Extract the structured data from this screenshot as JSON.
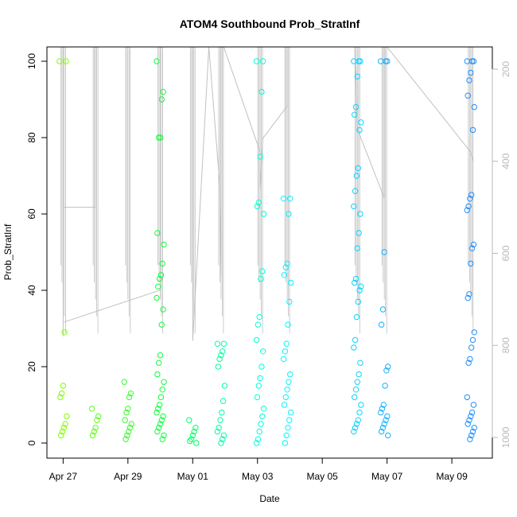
{
  "chart_data": {
    "type": "scatter",
    "title": "ATOM4 Southbound Prob_StratInf",
    "xlabel": "Date",
    "ylabel": "Prob_StratInf",
    "xlim": [
      "2016-04-26T12:00",
      "2016-05-10T06:00"
    ],
    "ylim": [
      0,
      100
    ],
    "x_ticks": [
      {
        "date": "2016-04-27",
        "label": "Apr 27"
      },
      {
        "date": "2016-04-29",
        "label": "Apr 29"
      },
      {
        "date": "2016-05-01",
        "label": "May 01"
      },
      {
        "date": "2016-05-03",
        "label": "May 03"
      },
      {
        "date": "2016-05-05",
        "label": "May 05"
      },
      {
        "date": "2016-05-07",
        "label": "May 07"
      },
      {
        "date": "2016-05-09",
        "label": "May 09"
      }
    ],
    "y_ticks": [
      0,
      20,
      40,
      60,
      80,
      100
    ],
    "y2_ticks": [
      200,
      400,
      600,
      800,
      1000
    ],
    "y2lim": [
      1020,
      150
    ],
    "grid": false,
    "legend": "none",
    "marker": "open-circle",
    "colors": {
      "points_start": "#7fff00",
      "points_mid": "#00ff40",
      "points_late": "#00ffff",
      "points_end": "#1e90ff",
      "secondary_line": "#c0c0c0",
      "secondary_axis": "#b8b8b8"
    },
    "series": [
      {
        "x": "2016-04-27T00:00",
        "y": [
          100,
          100,
          29,
          15,
          13,
          12,
          7,
          5,
          4,
          3,
          2
        ]
      },
      {
        "x": "2016-04-28T00:00",
        "y": [
          9,
          7,
          6,
          4,
          3,
          2
        ]
      },
      {
        "x": "2016-04-29T00:00",
        "y": [
          16,
          13,
          12,
          9,
          8,
          6,
          5,
          4,
          3,
          2,
          1
        ]
      },
      {
        "x": "2016-04-30T00:00",
        "y": [
          100,
          92,
          90,
          80,
          80,
          55,
          52,
          47,
          44,
          43,
          41,
          38,
          35,
          31,
          23,
          21,
          18,
          16,
          14,
          12,
          10,
          9,
          8,
          7,
          6,
          5,
          4,
          3,
          2,
          1
        ]
      },
      {
        "x": "2016-05-01T00:00",
        "y": [
          6,
          4,
          3,
          2,
          1,
          0.5,
          0
        ]
      },
      {
        "x": "2016-05-01T21:00",
        "y": [
          26,
          26,
          24,
          23,
          22,
          20,
          15,
          11,
          8,
          6,
          4,
          3,
          2,
          1,
          0
        ]
      },
      {
        "x": "2016-05-03T02:00",
        "y": [
          100,
          100,
          92,
          75,
          63,
          62,
          60,
          45,
          43,
          33,
          31,
          27,
          24,
          20,
          17,
          15,
          12,
          9,
          7,
          5,
          3,
          1,
          0
        ]
      },
      {
        "x": "2016-05-03T22:00",
        "y": [
          64,
          64,
          60,
          47,
          46,
          44,
          42,
          37,
          31,
          26,
          24,
          22,
          18,
          16,
          14,
          12,
          10,
          8,
          6,
          4,
          2,
          0
        ]
      },
      {
        "x": "2016-05-06T02:00",
        "y": [
          100,
          100,
          100,
          96,
          88,
          86,
          84,
          82,
          72,
          70,
          66,
          62,
          60,
          55,
          51,
          43,
          42,
          41,
          40,
          37,
          33,
          27,
          25,
          21,
          18,
          16,
          14,
          12,
          10,
          8,
          6,
          5,
          4,
          3
        ]
      },
      {
        "x": "2016-05-06T22:00",
        "y": [
          100,
          100,
          100,
          50,
          35,
          31,
          20,
          19,
          15,
          10,
          9,
          8,
          7,
          6,
          5,
          4,
          3,
          2
        ]
      },
      {
        "x": "2016-05-09T14:00",
        "y": [
          100,
          100,
          100,
          97,
          95,
          91,
          88,
          82,
          65,
          64,
          62,
          61,
          52,
          51,
          47,
          39,
          38,
          29,
          27,
          25,
          22,
          21,
          12,
          10,
          8,
          7,
          6,
          5,
          4,
          3,
          2,
          1
        ]
      }
    ],
    "secondary_line": [
      {
        "x": "2016-04-27T00:00",
        "y2": 150
      },
      {
        "x": "2016-04-27T00:00",
        "y2": 500
      },
      {
        "x": "2016-04-28T00:00",
        "y2": 500
      },
      {
        "x": "2016-04-28T00:00",
        "y2": 150
      },
      {
        "x": "2016-04-27T00:00",
        "y2": 150
      },
      {
        "x": "2016-04-27T00:00",
        "y2": 780
      },
      {
        "x": "2016-04-27T00:00",
        "y2": 750
      },
      {
        "x": "2016-04-30T00:00",
        "y2": 680
      },
      {
        "x": "2016-04-30T00:00",
        "y2": 150
      },
      {
        "x": "2016-04-30T06:00",
        "y2": 150
      },
      {
        "x": "2016-05-01T00:00",
        "y2": 150
      },
      {
        "x": "2016-05-01T00:00",
        "y2": 790
      },
      {
        "x": "2016-05-01T12:00",
        "y2": 150
      },
      {
        "x": "2016-05-01T20:00",
        "y2": 450
      },
      {
        "x": "2016-05-01T21:00",
        "y2": 650
      },
      {
        "x": "2016-05-01T21:00",
        "y2": 150
      },
      {
        "x": "2016-05-01T23:00",
        "y2": 150
      },
      {
        "x": "2016-05-03T02:00",
        "y2": 380
      },
      {
        "x": "2016-05-03T02:00",
        "y2": 460
      },
      {
        "x": "2016-05-03T04:00",
        "y2": 350
      },
      {
        "x": "2016-05-03T22:00",
        "y2": 280
      },
      {
        "x": "2016-05-03T22:00",
        "y2": 150
      },
      {
        "x": "2016-05-06T00:00",
        "y2": 150
      },
      {
        "x": "2016-05-06T02:00",
        "y2": 330
      },
      {
        "x": "2016-05-06T22:00",
        "y2": 480
      },
      {
        "x": "2016-05-06T22:00",
        "y2": 150
      },
      {
        "x": "2016-05-07T00:00",
        "y2": 150
      },
      {
        "x": "2016-05-09T14:00",
        "y2": 380
      },
      {
        "x": "2016-05-09T16:00",
        "y2": 400
      }
    ]
  }
}
